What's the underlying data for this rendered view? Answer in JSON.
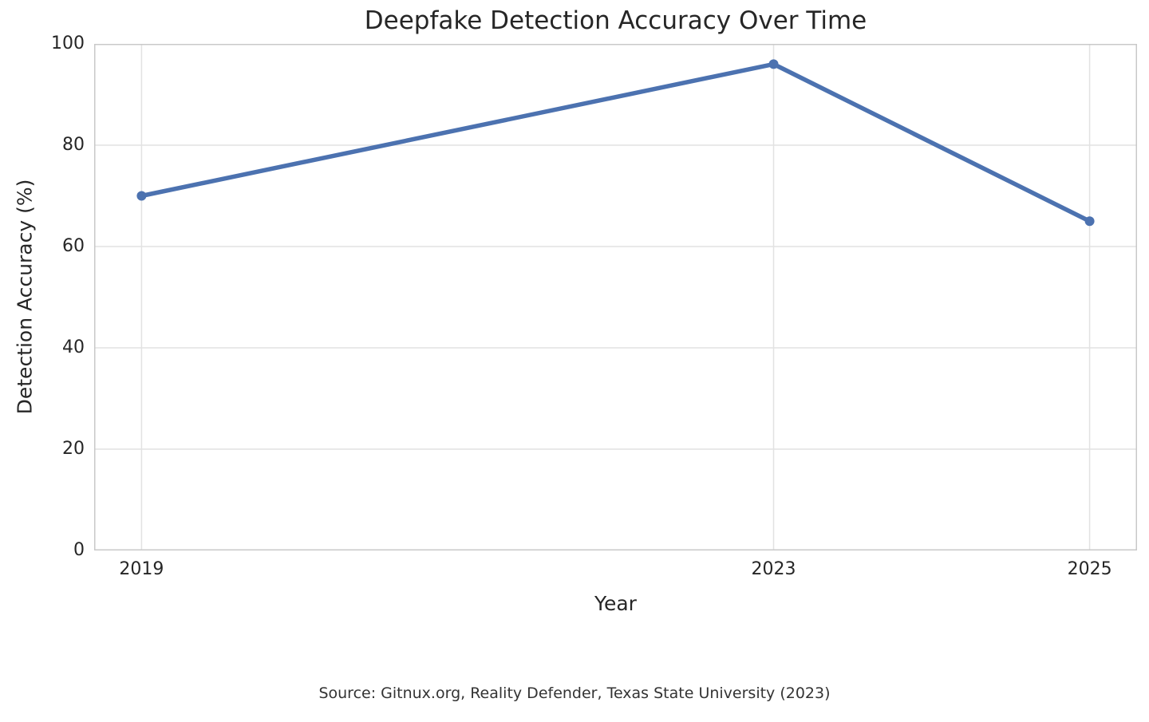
{
  "chart_data": {
    "type": "line",
    "title": "Deepfake Detection Accuracy Over Time",
    "xlabel": "Year",
    "ylabel": "Detection Accuracy (%)",
    "x": [
      2019,
      2023,
      2025
    ],
    "series": [
      {
        "name": "Detection Accuracy (%)",
        "values": [
          70,
          96,
          65
        ]
      }
    ],
    "x_tick_values": [
      2019,
      2023,
      2025
    ],
    "x_tick_labels": [
      "2019",
      "2023",
      "2025"
    ],
    "y_tick_values": [
      0,
      20,
      40,
      60,
      80,
      100
    ],
    "y_tick_labels": [
      "0",
      "20",
      "40",
      "60",
      "80",
      "100"
    ],
    "xlim": [
      2018.7,
      2025.3
    ],
    "ylim": [
      0,
      100
    ],
    "grid": true,
    "legend": "none",
    "line_color": "#4C72B0",
    "marker": "circle",
    "grid_color": "#e2e2e2",
    "spine_color": "#c9c9c9",
    "text_color": "#262626",
    "background_color": "#ffffff"
  },
  "footer": {
    "source": "Source: Gitnux.org, Reality Defender, Texas State University (2023)"
  }
}
